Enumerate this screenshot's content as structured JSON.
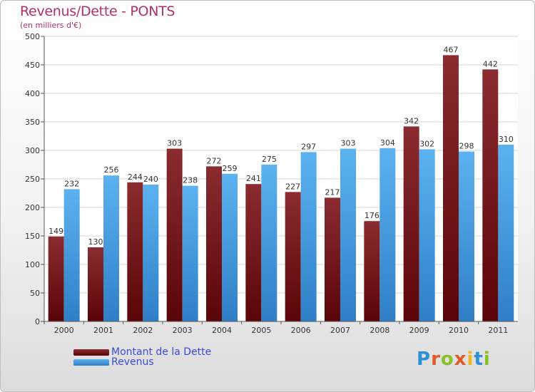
{
  "header": {
    "title": "Revenus/Dette - PONTS",
    "subtitle": "(en milliers d'€)"
  },
  "colors": {
    "dette": "#6e0f14",
    "revenus": "#4aa3e8",
    "title": "#b0306a",
    "legend_text": "#3b4bd8"
  },
  "logo": {
    "text": "Proxiti",
    "letter_colors": [
      "#2e8fd6",
      "#e05a2b",
      "#8bbf2a",
      "#e05a2b",
      "#f2b51e",
      "#2e8fd6",
      "#8bbf2a"
    ]
  },
  "chart_data": {
    "type": "bar",
    "title": "Revenus/Dette - PONTS",
    "subtitle": "(en milliers d'€)",
    "categories": [
      "2000",
      "2001",
      "2002",
      "2003",
      "2004",
      "2005",
      "2006",
      "2007",
      "2008",
      "2009",
      "2010",
      "2011"
    ],
    "series": [
      {
        "name": "Montant de la Dette",
        "values": [
          149,
          130,
          244,
          303,
          272,
          241,
          227,
          217,
          176,
          342,
          467,
          442
        ]
      },
      {
        "name": "Revenus",
        "values": [
          232,
          256,
          240,
          238,
          259,
          275,
          297,
          303,
          304,
          302,
          298,
          310
        ]
      }
    ],
    "ylim": [
      0,
      500
    ],
    "yticks": [
      0,
      50,
      100,
      150,
      200,
      250,
      300,
      350,
      400,
      450,
      500
    ],
    "grid": true,
    "legend_position": "bottom-left"
  }
}
